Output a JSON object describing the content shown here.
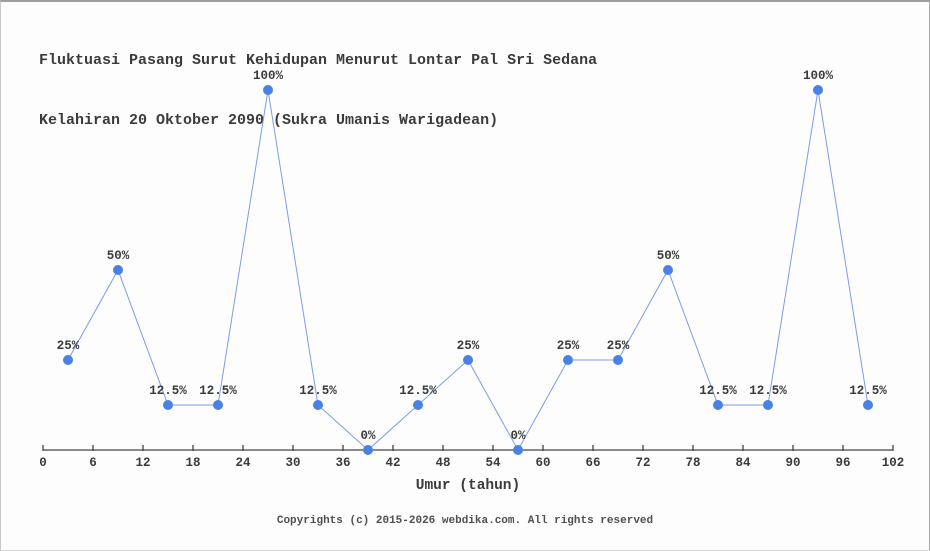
{
  "page": {
    "title_line1": "Fluktuasi Pasang Surut Kehidupan Menurut Lontar Pal Sri Sedana",
    "title_line2": "Kelahiran 20 Oktober 2090 (Sukra Umanis Warigadean)",
    "footer": "Copyrights (c) 2015-2026 webdika.com. All rights reserved"
  },
  "colors": {
    "marker": "#4a82e4",
    "line": "#7b9ce6",
    "axis": "#444444",
    "label_text": "#3b3b3b"
  },
  "chart_data": {
    "type": "line",
    "title": "Fluktuasi Pasang Surut Kehidupan Menurut Lontar Pal Sri Sedana Kelahiran 20 Oktober 2090 (Sukra Umanis Warigadean)",
    "x": [
      3,
      9,
      15,
      21,
      27,
      33,
      39,
      45,
      51,
      57,
      63,
      69,
      75,
      81,
      87,
      93,
      99
    ],
    "values": [
      25,
      50,
      12.5,
      12.5,
      100,
      12.5,
      0,
      12.5,
      25,
      0,
      25,
      25,
      50,
      12.5,
      12.5,
      100,
      12.5
    ],
    "point_labels": [
      "25%",
      "50%",
      "12.5%",
      "12.5%",
      "100%",
      "12.5%",
      "0%",
      "12.5%",
      "25%",
      "0%",
      "25%",
      "25%",
      "50%",
      "12.5%",
      "12.5%",
      "100%",
      "12.5%"
    ],
    "x_ticks": [
      0,
      6,
      12,
      18,
      24,
      30,
      36,
      42,
      48,
      54,
      60,
      66,
      72,
      78,
      84,
      90,
      96,
      102
    ],
    "xlabel": "Umur (tahun)",
    "ylabel": "",
    "xlim": [
      0,
      102
    ],
    "ylim": [
      0,
      100
    ],
    "grid": false,
    "legend": "none",
    "marker": "circle",
    "y_axis_shown": false
  }
}
